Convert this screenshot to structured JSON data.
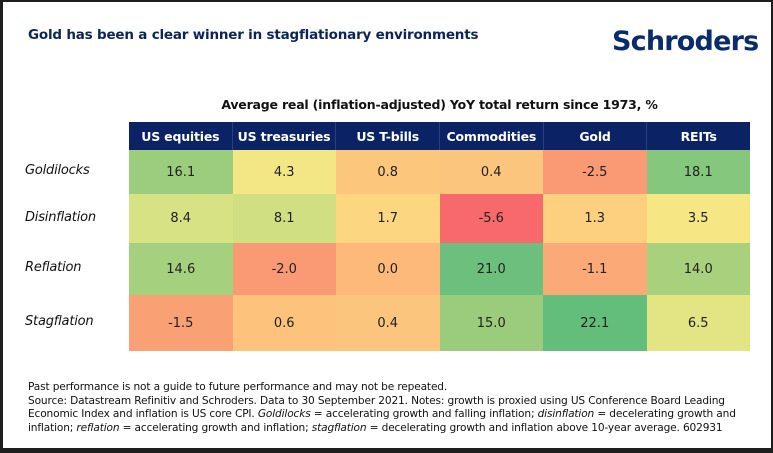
{
  "header": {
    "title": "Gold has been a clear winner in stagflationary environments",
    "logo": "Schroders"
  },
  "chart_data": {
    "type": "heatmap",
    "title": "Average real (inflation-adjusted) YoY total return since 1973, %",
    "columns": [
      "US equities",
      "US treasuries",
      "US T-bills",
      "Commodities",
      "Gold",
      "REITs"
    ],
    "rows": [
      "Goldilocks",
      "Disinflation",
      "Reflation",
      "Stagflation"
    ],
    "values": [
      [
        16.1,
        4.3,
        0.8,
        0.4,
        -2.5,
        18.1
      ],
      [
        8.4,
        8.1,
        1.7,
        -5.6,
        1.3,
        3.5
      ],
      [
        14.6,
        -2.0,
        0.0,
        21.0,
        -1.1,
        14.0
      ],
      [
        -1.5,
        0.6,
        0.4,
        15.0,
        22.1,
        6.5
      ]
    ],
    "display_values": [
      [
        "16.1",
        "4.3",
        "0.8",
        "0.4",
        "-2.5",
        "18.1"
      ],
      [
        "8.4",
        "8.1",
        "1.7",
        "-5.6",
        "1.3",
        "3.5"
      ],
      [
        "14.6",
        "-2.0",
        "0.0",
        "21.0",
        "-1.1",
        "14.0"
      ],
      [
        "-1.5",
        "0.6",
        "0.4",
        "15.0",
        "22.1",
        "6.5"
      ]
    ],
    "colors": [
      [
        "#9ccd7c",
        "#f3e685",
        "#fcc67d",
        "#fcc57d",
        "#f99a74",
        "#85c77c"
      ],
      [
        "#d6e283",
        "#d0df82",
        "#fdd780",
        "#f8696b",
        "#fdd07f",
        "#f7e684"
      ],
      [
        "#a5d07d",
        "#f99a74",
        "#fcb97a",
        "#6cbf7c",
        "#fbaa77",
        "#a8d17d"
      ],
      [
        "#faa075",
        "#fdc27c",
        "#fcc57d",
        "#9bcc7c",
        "#63be7b",
        "#e3e483"
      ]
    ],
    "color_scale": {
      "low": "#f8696b",
      "mid": "#ffe984",
      "high": "#63be7b"
    }
  },
  "footnote": {
    "line1": "Past performance is not a guide to future performance and may not be repeated.",
    "line2_a": "Source: Datastream Refinitiv and Schroders. Data to 30 September 2021. Notes: growth is proxied using US Conference Board Leading Economic Index and inflation is US core CPI. ",
    "goldilocks_term": "Goldilocks",
    "goldilocks_def": " = accelerating growth and falling inflation; ",
    "disinflation_term": "disinflation",
    "disinflation_def": " = decelerating growth and inflation; ",
    "reflation_term": "reflation",
    "reflation_def": " = accelerating growth and inflation; ",
    "stagflation_term": "stagflation",
    "stagflation_def": " = decelerating growth and inflation above 10-year average. 602931"
  }
}
